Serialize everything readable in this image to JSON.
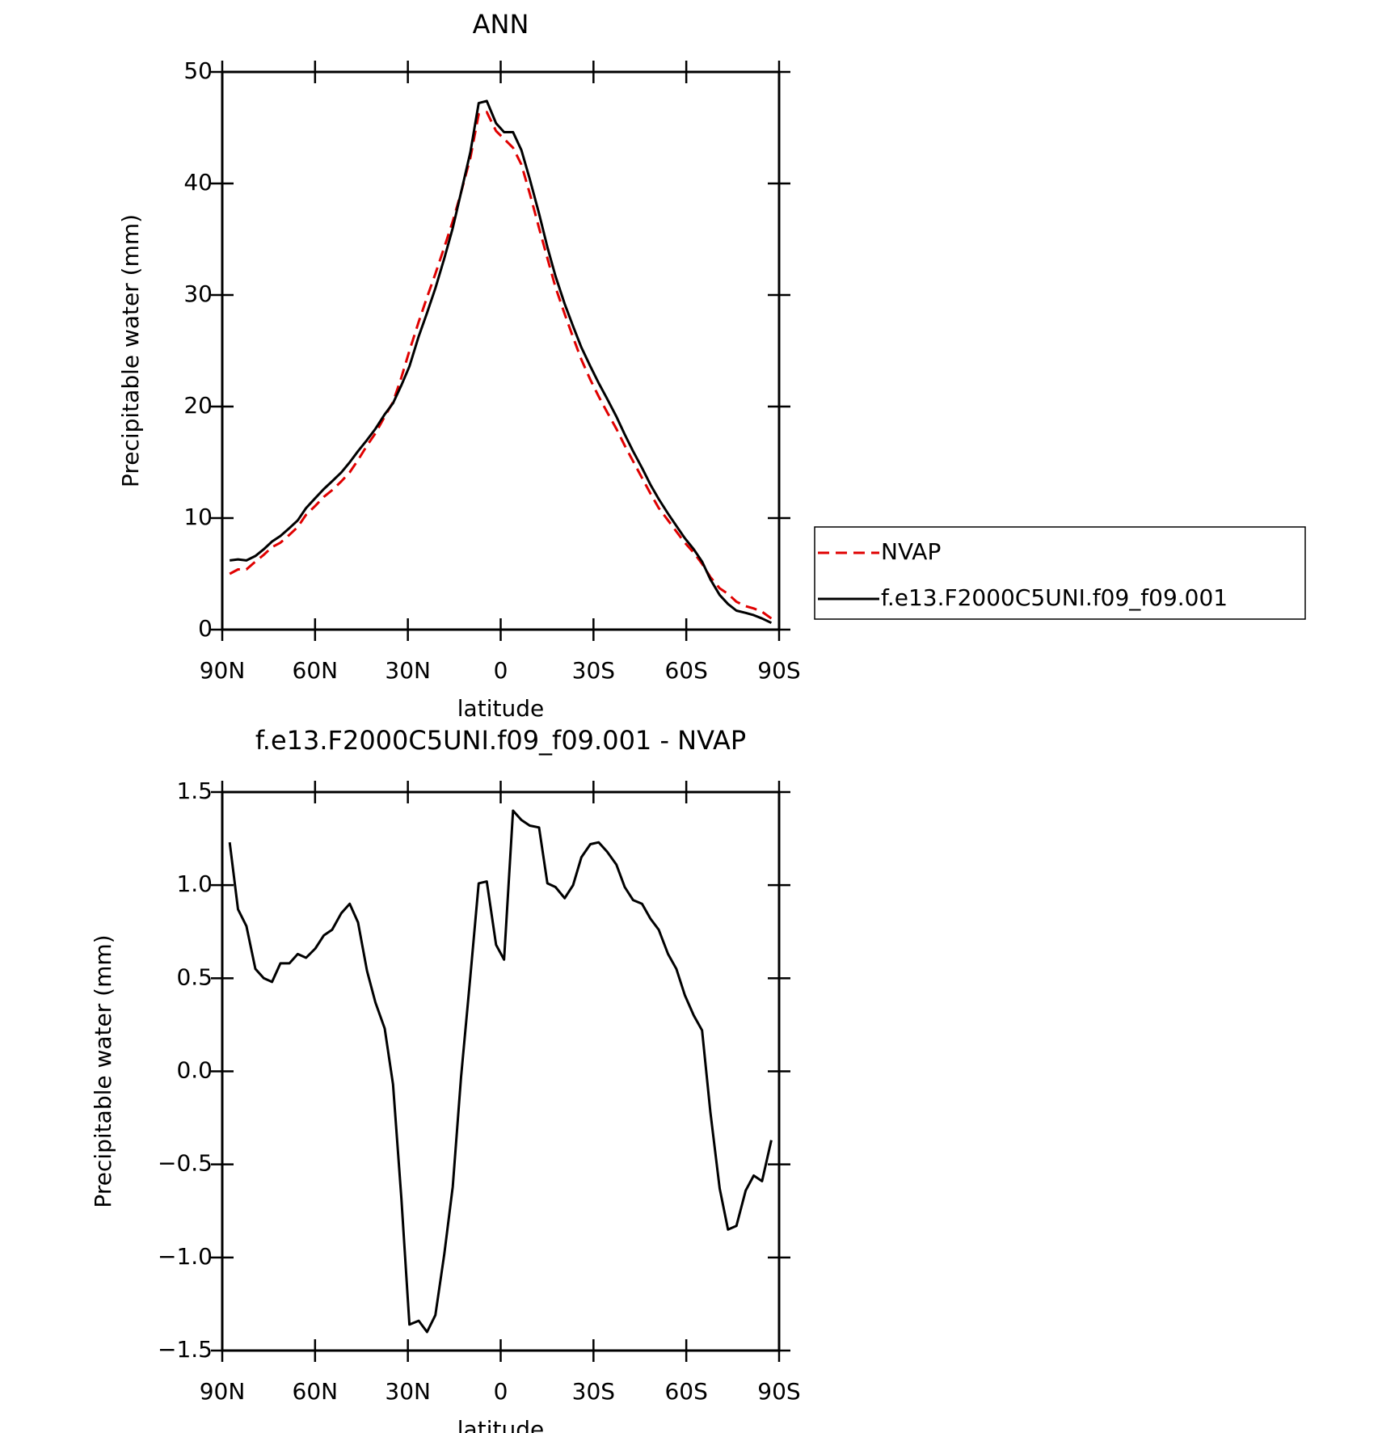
{
  "chart_data": [
    {
      "type": "line",
      "title": "ANN",
      "xlabel": "latitude",
      "ylabel": "Precipitable water (mm)",
      "x": [
        87.6,
        84.9,
        82.2,
        79.3,
        76.6,
        73.9,
        71.2,
        68.3,
        65.6,
        62.9,
        59.9,
        57.2,
        54.5,
        51.5,
        48.8,
        46.1,
        43.2,
        40.5,
        37.5,
        34.8,
        32.1,
        29.5,
        26.5,
        23.8,
        21.1,
        18.2,
        15.5,
        12.8,
        9.8,
        7.1,
        4.5,
        1.5,
        -1.1,
        -4.0,
        -6.7,
        -9.4,
        -12.4,
        -15.1,
        -17.7,
        -20.7,
        -23.4,
        -26.1,
        -29.0,
        -31.7,
        -34.4,
        -37.4,
        -40.1,
        -42.8,
        -45.7,
        -48.4,
        -51.1,
        -54.1,
        -56.8,
        -59.5,
        -62.4,
        -65.1,
        -67.8,
        -70.8,
        -73.5,
        -76.2,
        -79.2,
        -81.8,
        -84.5,
        -87.5
      ],
      "series": [
        {
          "name": "NVAP",
          "color": "#e00000",
          "linestyle": "dashed",
          "values": [
            5.0,
            5.4,
            5.4,
            6.1,
            6.7,
            7.4,
            7.8,
            8.5,
            9.2,
            10.3,
            11.1,
            11.9,
            12.5,
            13.3,
            14.1,
            15.2,
            16.5,
            17.6,
            19.1,
            20.4,
            22.6,
            25.0,
            27.6,
            29.8,
            31.9,
            34.3,
            36.6,
            39.2,
            42.3,
            46.2,
            46.4,
            44.7,
            44.0,
            43.2,
            41.7,
            39.1,
            36.0,
            33.3,
            30.7,
            28.3,
            26.2,
            24.2,
            22.4,
            20.9,
            19.5,
            18.0,
            16.5,
            15.1,
            13.6,
            12.2,
            10.9,
            9.8,
            8.8,
            7.8,
            6.9,
            5.9,
            4.7,
            3.7,
            3.2,
            2.5,
            2.1,
            1.9,
            1.6,
            1.0
          ]
        },
        {
          "name": "f.e13.F2000C5UNI.f09_f09.001",
          "color": "#000000",
          "linestyle": "solid",
          "values": [
            6.2,
            6.3,
            6.2,
            6.6,
            7.2,
            7.9,
            8.4,
            9.1,
            9.8,
            10.9,
            11.8,
            12.6,
            13.3,
            14.1,
            15.0,
            16.0,
            17.0,
            18.0,
            19.3,
            20.3,
            21.9,
            23.6,
            26.3,
            28.4,
            30.6,
            33.3,
            36.0,
            39.2,
            42.8,
            47.2,
            47.4,
            45.4,
            44.6,
            44.6,
            43.0,
            40.4,
            37.3,
            34.3,
            31.7,
            29.2,
            27.2,
            25.3,
            23.6,
            22.1,
            20.7,
            19.1,
            17.5,
            16.0,
            14.5,
            13.0,
            11.7,
            10.4,
            9.3,
            8.2,
            7.2,
            6.1,
            4.5,
            3.1,
            2.3,
            1.7,
            1.5,
            1.3,
            1.0,
            0.6
          ]
        }
      ],
      "xlim": [
        90,
        -90
      ],
      "xticks": [
        {
          "value": 90,
          "label": "90N"
        },
        {
          "value": 60,
          "label": "60N"
        },
        {
          "value": 30,
          "label": "30N"
        },
        0,
        {
          "value": -30,
          "label": "30S"
        },
        {
          "value": -60,
          "label": "60S"
        },
        {
          "value": -90,
          "label": "90S"
        }
      ],
      "ylim": [
        0,
        50
      ],
      "yticks": [
        0,
        10,
        20,
        30,
        40,
        50
      ],
      "legend": "right"
    },
    {
      "type": "line",
      "title": "f.e13.F2000C5UNI.f09_f09.001 - NVAP",
      "xlabel": "latitude",
      "ylabel": "Precipitable water (mm)",
      "x": [
        87.6,
        84.9,
        82.2,
        79.3,
        76.6,
        73.9,
        71.2,
        68.3,
        65.6,
        62.9,
        59.9,
        57.2,
        54.5,
        51.5,
        48.8,
        46.1,
        43.2,
        40.5,
        37.5,
        34.8,
        32.1,
        29.5,
        26.5,
        23.8,
        21.1,
        18.2,
        15.5,
        12.8,
        9.8,
        7.1,
        4.5,
        1.5,
        -1.1,
        -4.0,
        -6.7,
        -9.4,
        -12.4,
        -15.1,
        -17.7,
        -20.7,
        -23.4,
        -26.1,
        -29.0,
        -31.7,
        -34.4,
        -37.4,
        -40.1,
        -42.8,
        -45.7,
        -48.4,
        -51.1,
        -54.1,
        -56.8,
        -59.5,
        -62.4,
        -65.1,
        -67.8,
        -70.8,
        -73.5,
        -76.2,
        -79.2,
        -81.8,
        -84.5,
        -87.5
      ],
      "values": [
        1.23,
        0.87,
        0.78,
        0.55,
        0.5,
        0.48,
        0.58,
        0.58,
        0.63,
        0.61,
        0.66,
        0.73,
        0.76,
        0.85,
        0.9,
        0.8,
        0.54,
        0.37,
        0.23,
        -0.07,
        -0.68,
        -1.36,
        -1.34,
        -1.4,
        -1.31,
        -0.98,
        -0.62,
        -0.03,
        0.51,
        1.01,
        1.02,
        0.68,
        0.6,
        1.4,
        1.35,
        1.32,
        1.31,
        1.01,
        0.99,
        0.93,
        1.0,
        1.15,
        1.22,
        1.23,
        1.18,
        1.11,
        0.99,
        0.92,
        0.9,
        0.82,
        0.76,
        0.63,
        0.55,
        0.41,
        0.3,
        0.22,
        -0.22,
        -0.63,
        -0.85,
        -0.83,
        -0.64,
        -0.56,
        -0.59,
        -0.37
      ],
      "color": "#000000",
      "xlim": [
        90,
        -90
      ],
      "xticks": [
        {
          "value": 90,
          "label": "90N"
        },
        {
          "value": 60,
          "label": "60N"
        },
        {
          "value": 30,
          "label": "30N"
        },
        0,
        {
          "value": -30,
          "label": "30S"
        },
        {
          "value": -60,
          "label": "60S"
        },
        {
          "value": -90,
          "label": "90S"
        }
      ],
      "ylim": [
        -1.5,
        1.5
      ],
      "yticks": [
        {
          "value": -1.5,
          "label": "−1.5"
        },
        {
          "value": -1,
          "label": "−1.0"
        },
        {
          "value": -0.5,
          "label": "−0.5"
        },
        {
          "value": 0,
          "label": "0.0"
        },
        0.5,
        {
          "value": 1,
          "label": "1.0"
        },
        1.5
      ]
    }
  ]
}
